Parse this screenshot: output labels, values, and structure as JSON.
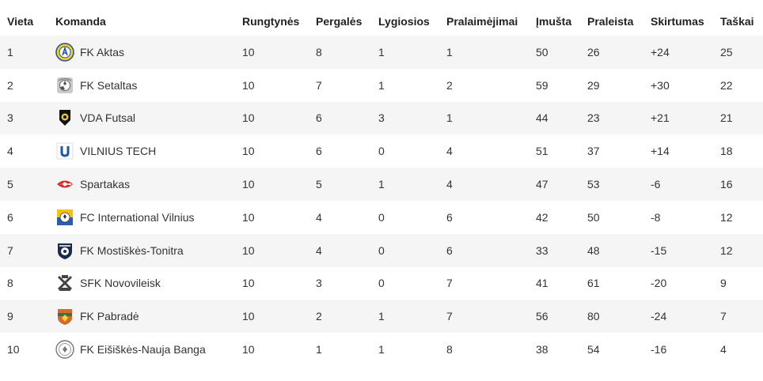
{
  "headers": [
    "Vieta",
    "Komanda",
    "Rungtynės",
    "Pergalės",
    "Lygiosios",
    "Pralaimėjimai",
    "Įmušta",
    "Praleista",
    "Skirtumas",
    "Taškai"
  ],
  "rows": [
    {
      "place": "1",
      "team": "FK Aktas",
      "logo": "fk-aktas-logo",
      "played": "10",
      "wins": "8",
      "draws": "1",
      "losses": "1",
      "scored": "50",
      "conceded": "26",
      "diff": "+24",
      "points": "25"
    },
    {
      "place": "2",
      "team": "FK Setaltas",
      "logo": "fk-setaltas-logo",
      "played": "10",
      "wins": "7",
      "draws": "1",
      "losses": "2",
      "scored": "59",
      "conceded": "29",
      "diff": "+30",
      "points": "22"
    },
    {
      "place": "3",
      "team": "VDA Futsal",
      "logo": "vda-futsal-logo",
      "played": "10",
      "wins": "6",
      "draws": "3",
      "losses": "1",
      "scored": "44",
      "conceded": "23",
      "diff": "+21",
      "points": "21"
    },
    {
      "place": "4",
      "team": "VILNIUS TECH",
      "logo": "vilnius-tech-logo",
      "played": "10",
      "wins": "6",
      "draws": "0",
      "losses": "4",
      "scored": "51",
      "conceded": "37",
      "diff": "+14",
      "points": "18"
    },
    {
      "place": "5",
      "team": "Spartakas",
      "logo": "spartakas-logo",
      "played": "10",
      "wins": "5",
      "draws": "1",
      "losses": "4",
      "scored": "47",
      "conceded": "53",
      "diff": "-6",
      "points": "16"
    },
    {
      "place": "6",
      "team": "FC International Vilnius",
      "logo": "fc-international-vilnius-logo",
      "played": "10",
      "wins": "4",
      "draws": "0",
      "losses": "6",
      "scored": "42",
      "conceded": "50",
      "diff": "-8",
      "points": "12"
    },
    {
      "place": "7",
      "team": "FK Mostiškės-Tonitra",
      "logo": "fk-mostiskes-tonitra-logo",
      "played": "10",
      "wins": "4",
      "draws": "0",
      "losses": "6",
      "scored": "33",
      "conceded": "48",
      "diff": "-15",
      "points": "12"
    },
    {
      "place": "8",
      "team": "SFK Novovileisk",
      "logo": "sfk-novovileisk-logo",
      "played": "10",
      "wins": "3",
      "draws": "0",
      "losses": "7",
      "scored": "41",
      "conceded": "61",
      "diff": "-20",
      "points": "9"
    },
    {
      "place": "9",
      "team": "FK Pabradė",
      "logo": "fk-pabrade-logo",
      "played": "10",
      "wins": "2",
      "draws": "1",
      "losses": "7",
      "scored": "56",
      "conceded": "80",
      "diff": "-24",
      "points": "7"
    },
    {
      "place": "10",
      "team": "FK Eišiškės-Nauja Banga",
      "logo": "fk-eisiskes-nauja-banga-logo",
      "played": "10",
      "wins": "1",
      "draws": "1",
      "losses": "8",
      "scored": "38",
      "conceded": "54",
      "diff": "-16",
      "points": "4"
    }
  ]
}
